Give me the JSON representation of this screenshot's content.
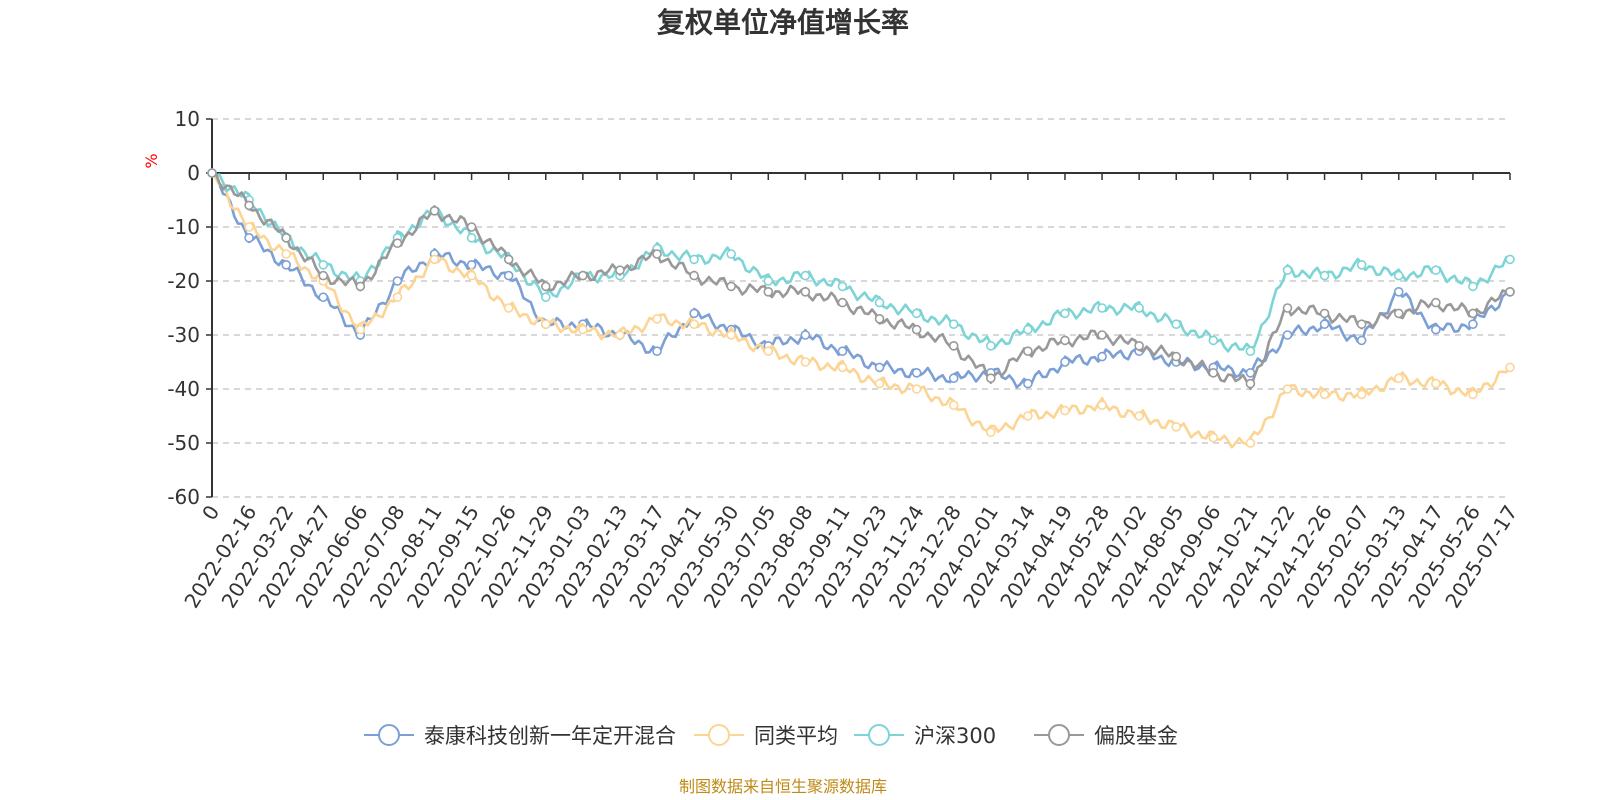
{
  "chart_data": {
    "type": "line",
    "title": "复权单位净值增长率",
    "ylabel": "%",
    "ylim": [
      -60,
      10
    ],
    "yticks": [
      10,
      0,
      -10,
      -20,
      -30,
      -40,
      -50,
      -60
    ],
    "grid": true,
    "legend_position": "bottom-center",
    "x_tick_labels": [
      "0",
      "2022-02-16",
      "2022-03-22",
      "2022-04-27",
      "2022-06-06",
      "2022-07-08",
      "2022-08-11",
      "2022-09-15",
      "2022-10-26",
      "2022-11-29",
      "2023-01-03",
      "2023-02-13",
      "2023-03-17",
      "2023-04-21",
      "2023-05-30",
      "2023-07-05",
      "2023-08-08",
      "2023-09-11",
      "2023-10-23",
      "2023-11-24",
      "2023-12-28",
      "2024-02-01",
      "2024-03-14",
      "2024-04-19",
      "2024-05-28",
      "2024-07-02",
      "2024-08-05",
      "2024-09-06",
      "2024-10-21",
      "2024-11-22",
      "2024-12-26",
      "2025-02-07",
      "2025-03-13",
      "2025-04-17",
      "2025-05-26",
      "2025-07-17"
    ],
    "series": [
      {
        "name": "泰康科技创新一年定开混合",
        "color": "#7c9fd6",
        "values": [
          0,
          -12,
          -17,
          -23,
          -30,
          -20,
          -15,
          -17,
          -19,
          -28,
          -28,
          -30,
          -33,
          -26,
          -29,
          -32,
          -30,
          -33,
          -36,
          -37,
          -38,
          -37,
          -39,
          -35,
          -34,
          -33,
          -35,
          -36,
          -37,
          -30,
          -28,
          -31,
          -22,
          -29,
          -28,
          -22
        ]
      },
      {
        "name": "同类平均",
        "color": "#fcd494",
        "values": [
          0,
          -10,
          -15,
          -20,
          -29,
          -23,
          -16,
          -19,
          -25,
          -28,
          -29,
          -30,
          -27,
          -28,
          -30,
          -33,
          -35,
          -36,
          -39,
          -40,
          -43,
          -48,
          -45,
          -44,
          -43,
          -45,
          -47,
          -49,
          -50,
          -40,
          -41,
          -41,
          -38,
          -39,
          -41,
          -36
        ]
      },
      {
        "name": "沪深300",
        "color": "#7dd4d6",
        "values": [
          0,
          -5,
          -12,
          -17,
          -20,
          -12,
          -7,
          -12,
          -16,
          -23,
          -19,
          -19,
          -14,
          -16,
          -15,
          -20,
          -19,
          -21,
          -24,
          -26,
          -28,
          -32,
          -29,
          -26,
          -25,
          -25,
          -28,
          -31,
          -33,
          -18,
          -19,
          -17,
          -19,
          -18,
          -21,
          -16
        ]
      },
      {
        "name": "偏股基金",
        "color": "#999999",
        "values": [
          0,
          -6,
          -12,
          -19,
          -21,
          -13,
          -7,
          -10,
          -16,
          -21,
          -19,
          -18,
          -15,
          -19,
          -21,
          -22,
          -22,
          -24,
          -27,
          -29,
          -32,
          -38,
          -33,
          -31,
          -30,
          -32,
          -34,
          -37,
          -39,
          -25,
          -26,
          -28,
          -26,
          -24,
          -26,
          -22
        ]
      }
    ]
  },
  "source_text": "制图数据来自恒生聚源数据库"
}
